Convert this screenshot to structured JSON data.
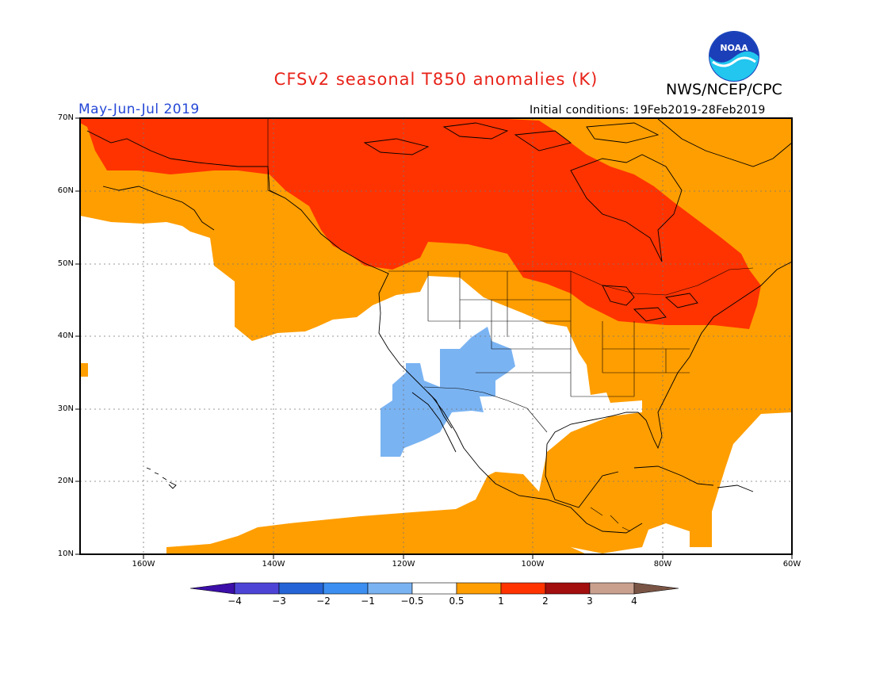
{
  "header": {
    "title": "CFSv2 seasonal T850 anomalies (K)",
    "season": "May-Jun-Jul 2019",
    "agency": "NWS/NCEP/CPC",
    "logo_text": "NOAA",
    "initial_conditions": "Initial conditions: 19Feb2019-28Feb2019"
  },
  "colors": {
    "title": "#e8231a",
    "season": "#2447d6",
    "white": "#ffffff",
    "lightblue": "#7ab3f2",
    "orange": "#ff9e00",
    "red": "#ff3300",
    "coast": "#000000"
  },
  "axes": {
    "lat_labels": [
      "70N",
      "60N",
      "50N",
      "40N",
      "30N",
      "20N",
      "10N"
    ],
    "lon_labels": [
      "160W",
      "140W",
      "120W",
      "100W",
      "80W",
      "60W"
    ],
    "lat_range": [
      10,
      70
    ],
    "lon_range": [
      -171,
      -60
    ]
  },
  "colorbar": {
    "colors": [
      "#3b0fa8",
      "#4d44d6",
      "#2464d6",
      "#3c8ff0",
      "#7ab3f2",
      "#ffffff",
      "#ff9e00",
      "#ff3300",
      "#a30e0e",
      "#c9a08e",
      "#7a5545"
    ],
    "labels": [
      "−4",
      "−3",
      "−2",
      "−1",
      "−0.5",
      "0.5",
      "1",
      "2",
      "3",
      "4"
    ]
  }
}
